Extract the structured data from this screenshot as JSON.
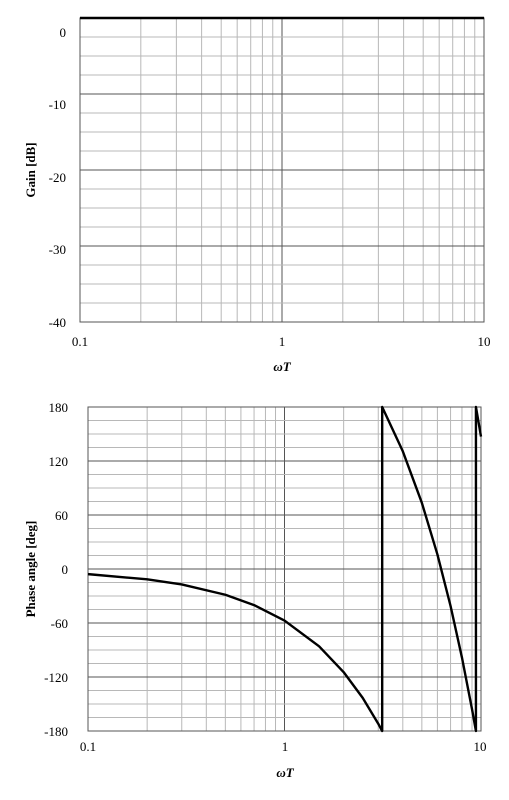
{
  "chart_data": [
    {
      "type": "line",
      "xlabel": "ωT",
      "ylabel": "Gain [dB]",
      "x_scale": "log",
      "xlim": [
        0.1,
        10
      ],
      "ylim": [
        -40,
        0
      ],
      "x_ticks": [
        "0.1",
        "1",
        "10"
      ],
      "y_ticks": [
        "0",
        "-10",
        "-20",
        "-30",
        "-40"
      ],
      "grid": true,
      "series": [
        {
          "x": [
            0.1,
            10
          ],
          "y": [
            0,
            0
          ]
        }
      ]
    },
    {
      "type": "line",
      "xlabel": "ωT",
      "ylabel": "Phase angle [deg]",
      "x_scale": "log",
      "xlim": [
        0.1,
        10
      ],
      "ylim": [
        -180,
        180
      ],
      "x_ticks": [
        "0.1",
        "1",
        "10"
      ],
      "y_ticks": [
        "180",
        "120",
        "60",
        "0",
        "-60",
        "-120",
        "-180"
      ],
      "grid": true,
      "series": [
        {
          "x": [
            0.1,
            0.2,
            0.3,
            0.5,
            0.7,
            1,
            1.5,
            2,
            2.5,
            3,
            3.1416,
            3.1416,
            4,
            5,
            6,
            7,
            8,
            9,
            9.42,
            9.4248,
            9.4248,
            10
          ],
          "y": [
            -5.7,
            -11.5,
            -17.2,
            -28.6,
            -40.1,
            -57.3,
            -85.9,
            -114.6,
            -143.2,
            -171.9,
            -180,
            180,
            130.8,
            73.5,
            16.2,
            -41.1,
            -98.4,
            -155.7,
            -179.7,
            -180,
            180,
            147.1
          ]
        }
      ]
    }
  ]
}
